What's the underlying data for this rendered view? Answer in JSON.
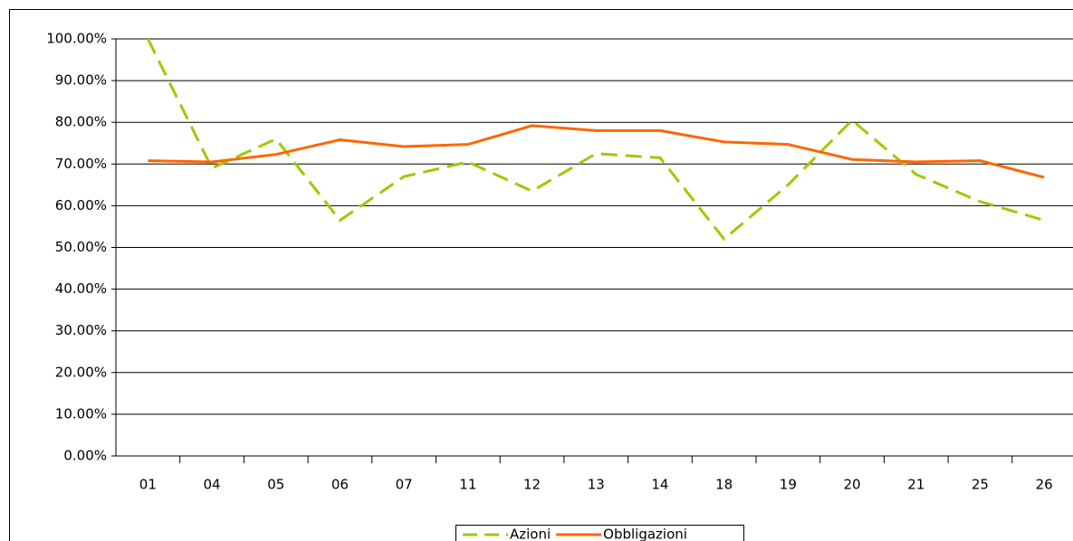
{
  "chart_data": {
    "type": "line",
    "categories": [
      "01",
      "04",
      "05",
      "06",
      "07",
      "11",
      "12",
      "13",
      "14",
      "18",
      "19",
      "20",
      "21",
      "25",
      "26"
    ],
    "series": [
      {
        "name": "Azioni",
        "color": "#99cc00",
        "dashed": true,
        "values": [
          100,
          69,
          76,
          56.5,
          67,
          70.5,
          63.5,
          72.5,
          71.5,
          52,
          65,
          80.5,
          67.5,
          61,
          56.5
        ]
      },
      {
        "name": "Obbligazioni",
        "color": "#ff6600",
        "dashed": false,
        "values": [
          70.8,
          70.5,
          72.3,
          75.8,
          74.2,
          74.7,
          79.2,
          78,
          78,
          75.3,
          74.7,
          71.1,
          70.5,
          70.8,
          66.8
        ]
      }
    ],
    "ylim": [
      0,
      100
    ],
    "yticks": [
      {
        "value": 0,
        "label": "0.00%"
      },
      {
        "value": 10,
        "label": "10.00%"
      },
      {
        "value": 20,
        "label": "20.00%"
      },
      {
        "value": 30,
        "label": "30.00%"
      },
      {
        "value": 40,
        "label": "40.00%"
      },
      {
        "value": 50,
        "label": "50.00%"
      },
      {
        "value": 60,
        "label": "60.00%"
      },
      {
        "value": 70,
        "label": "70.00%"
      },
      {
        "value": 80,
        "label": "80.00%"
      },
      {
        "value": 90,
        "label": "90.00%"
      },
      {
        "value": 100,
        "label": "100.00%"
      }
    ],
    "grid": true,
    "legend": "bottom"
  }
}
